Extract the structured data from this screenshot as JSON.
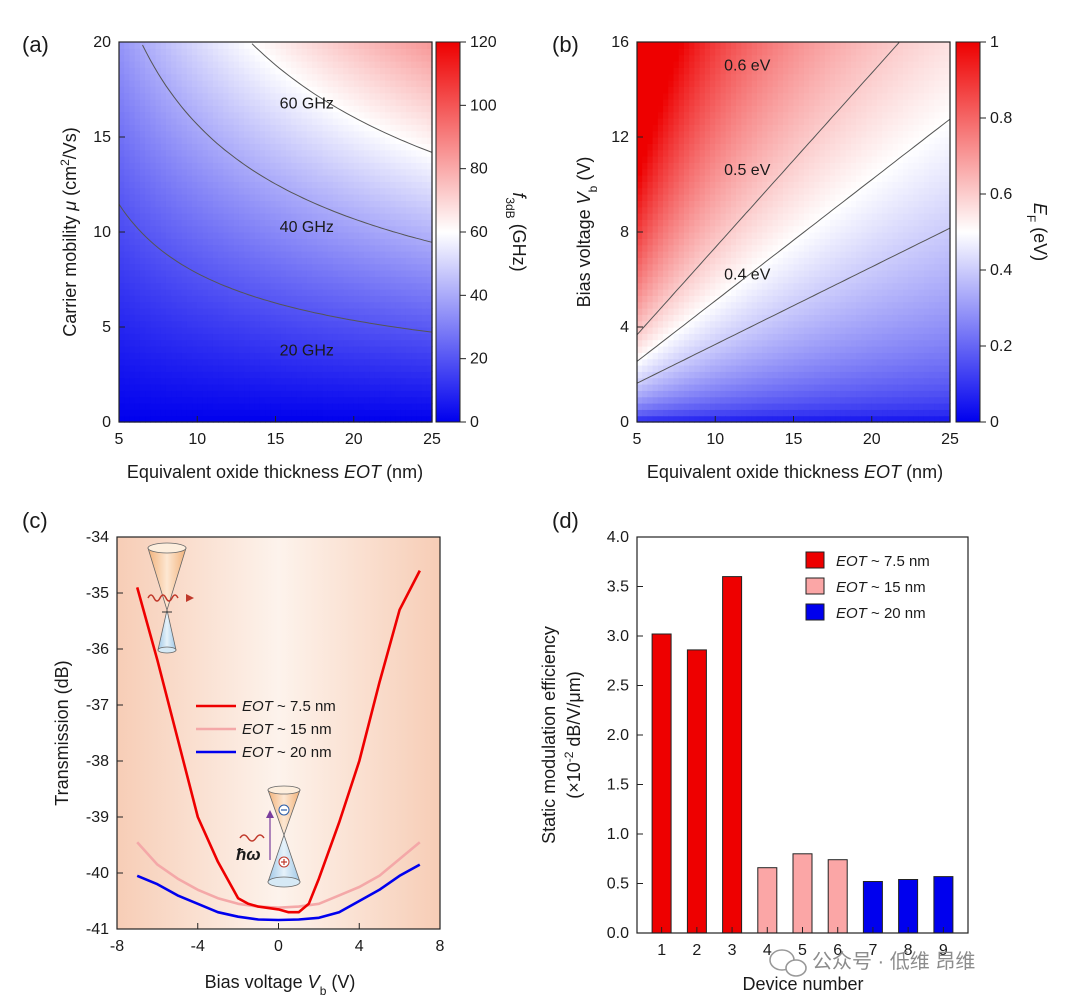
{
  "colors": {
    "red": "#ee0000",
    "blue": "#0000ee",
    "pink": "#f4a8a8",
    "bar_red": "#ee0000",
    "bar_pink": "#fba6a6",
    "bar_blue": "#0000ee"
  },
  "watermark": {
    "text": "公众号 · 低维 昂维",
    "icon": "wechat-icon"
  },
  "chart_data": [
    {
      "panel": "(a)",
      "type": "heatmap",
      "xlabel_prefix": "Equivalent oxide thickness ",
      "xlabel_var": "EOT",
      "xlabel_suffix": " (nm)",
      "ylabel_prefix": "Carrier mobility ",
      "ylabel_var": "μ",
      "ylabel_suffix": " (cm",
      "ylabel_sup": "2",
      "ylabel_end": "/Vs)",
      "xlim": [
        5,
        25
      ],
      "ylim": [
        0,
        20
      ],
      "x_ticks": [
        "5",
        "10",
        "15",
        "20",
        "25"
      ],
      "y_ticks": [
        "0",
        "5",
        "10",
        "15",
        "20"
      ],
      "colorbar": {
        "range": [
          0,
          120
        ],
        "ticks": [
          "0",
          "20",
          "40",
          "60",
          "80",
          "100",
          "120"
        ],
        "label_var": "f",
        "label_sub": "3dB",
        "label_unit": " (GHz)"
      },
      "contours": [
        {
          "label": "20 GHz",
          "value": 20
        },
        {
          "label": "40 GHz",
          "value": 40
        },
        {
          "label": "60 GHz",
          "value": 60
        }
      ]
    },
    {
      "panel": "(b)",
      "type": "heatmap",
      "xlabel_prefix": "Equivalent oxide thickness ",
      "xlabel_var": "EOT",
      "xlabel_suffix": " (nm)",
      "ylabel_prefix": "Bias voltage ",
      "ylabel_var": "V",
      "ylabel_sub": "b",
      "ylabel_suffix": " (V)",
      "xlim": [
        5,
        25
      ],
      "ylim": [
        0,
        16
      ],
      "x_ticks": [
        "5",
        "10",
        "15",
        "20",
        "25"
      ],
      "y_ticks": [
        "0",
        "4",
        "8",
        "12",
        "16"
      ],
      "colorbar": {
        "range": [
          0,
          1
        ],
        "ticks": [
          "0",
          "0.2",
          "0.4",
          "0.6",
          "0.8",
          "1"
        ],
        "label_var": "E",
        "label_sub": "F",
        "label_unit": " (eV)"
      },
      "contours": [
        {
          "label": "0.4 eV",
          "value": 0.4
        },
        {
          "label": "0.5 eV",
          "value": 0.5
        },
        {
          "label": "0.6 eV",
          "value": 0.6
        }
      ]
    },
    {
      "panel": "(c)",
      "type": "line",
      "xlabel_prefix": "Bias voltage ",
      "xlabel_var": "V",
      "xlabel_sub": "b",
      "xlabel_suffix": " (V)",
      "ylabel": "Transmission (dB)",
      "xlim": [
        -8,
        8
      ],
      "ylim": [
        -41,
        -34
      ],
      "x_ticks": [
        "-8",
        "-4",
        "0",
        "4",
        "8"
      ],
      "y_ticks": [
        "-34",
        "-35",
        "-36",
        "-37",
        "-38",
        "-39",
        "-40",
        "-41"
      ],
      "inset_symbol": "ħω",
      "series": [
        {
          "name_var": "EOT",
          "name_rest": " ~ 7.5 nm",
          "color": "#ee0000",
          "x": [
            -7,
            -6,
            -5,
            -4,
            -3,
            -2,
            -1.5,
            -1,
            0,
            0.5,
            1,
            1.5,
            2,
            3,
            4,
            5,
            6,
            7
          ],
          "y": [
            -34.9,
            -36.2,
            -37.6,
            -39.0,
            -39.8,
            -40.45,
            -40.55,
            -40.6,
            -40.65,
            -40.7,
            -40.7,
            -40.55,
            -40.1,
            -39.1,
            -38.0,
            -36.6,
            -35.3,
            -34.6
          ]
        },
        {
          "name_var": "EOT",
          "name_rest": " ~ 15 nm",
          "color": "#f4a8a8",
          "x": [
            -7,
            -6,
            -5,
            -4,
            -3,
            -2,
            -1,
            0,
            1,
            2,
            3,
            4,
            5,
            6,
            7
          ],
          "y": [
            -39.45,
            -39.85,
            -40.1,
            -40.3,
            -40.45,
            -40.55,
            -40.6,
            -40.62,
            -40.6,
            -40.55,
            -40.4,
            -40.25,
            -40.05,
            -39.75,
            -39.45
          ]
        },
        {
          "name_var": "EOT",
          "name_rest": " ~ 20 nm",
          "color": "#0000ee",
          "x": [
            -7,
            -6,
            -5,
            -4,
            -3,
            -2,
            -1,
            0,
            1,
            2,
            3,
            4,
            5,
            6,
            7
          ],
          "y": [
            -40.05,
            -40.2,
            -40.4,
            -40.55,
            -40.7,
            -40.78,
            -40.83,
            -40.84,
            -40.83,
            -40.8,
            -40.7,
            -40.5,
            -40.3,
            -40.05,
            -39.85
          ]
        }
      ]
    },
    {
      "panel": "(d)",
      "type": "bar",
      "xlabel": "Device number",
      "ylabel_line1": "Static modulation efficiency",
      "ylabel_line2_pre": "(×10",
      "ylabel_line2_sup": "-2",
      "ylabel_line2_post": " dB/V/μm)",
      "ylim": [
        0,
        4
      ],
      "categories": [
        "1",
        "2",
        "3",
        "4",
        "5",
        "6",
        "7",
        "8",
        "9"
      ],
      "y_ticks": [
        "0.0",
        "0.5",
        "1.0",
        "1.5",
        "2.0",
        "2.5",
        "3.0",
        "3.5",
        "4.0"
      ],
      "values": [
        3.02,
        2.86,
        3.6,
        0.66,
        0.8,
        0.74,
        0.52,
        0.54,
        0.57
      ],
      "groups": [
        0,
        0,
        0,
        1,
        1,
        1,
        2,
        2,
        2
      ],
      "legend": [
        {
          "name_var": "EOT",
          "name_rest": " ~ 7.5 nm"
        },
        {
          "name_var": "EOT",
          "name_rest": " ~ 15 nm"
        },
        {
          "name_var": "EOT",
          "name_rest": " ~ 20 nm"
        }
      ]
    }
  ]
}
